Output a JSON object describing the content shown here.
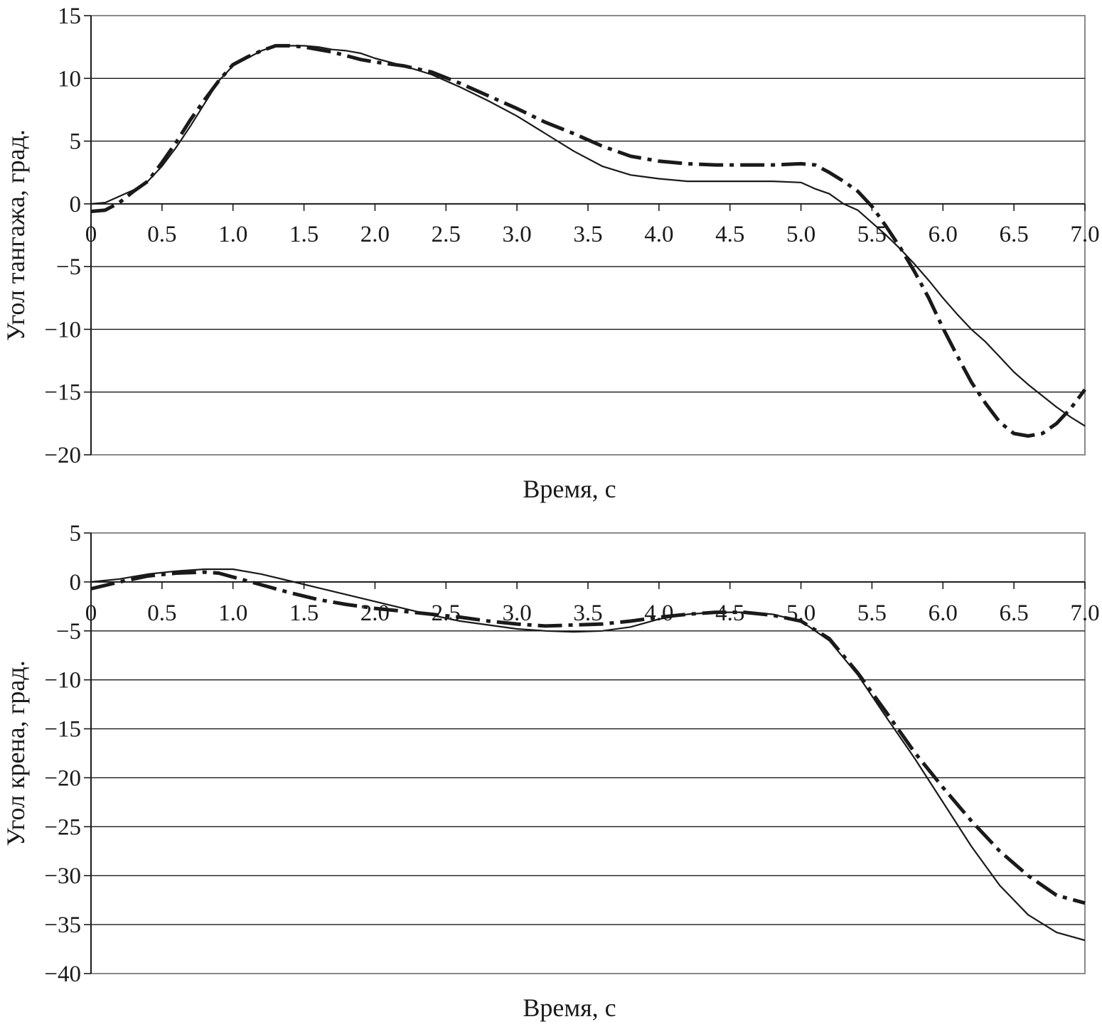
{
  "chart_data": [
    {
      "type": "line",
      "xlabel": "Время, с",
      "ylabel": "Угол тангажа, град.",
      "xlim": [
        0,
        7.0
      ],
      "ylim": [
        -20,
        15
      ],
      "x_ticks": [
        "0",
        "0.5",
        "1.0",
        "1.5",
        "2.0",
        "2.5",
        "3.0",
        "3.5",
        "4.0",
        "4.5",
        "5.0",
        "5.5",
        "6.0",
        "6.5",
        "7.0"
      ],
      "x_tick_values": [
        0,
        0.5,
        1.0,
        1.5,
        2.0,
        2.5,
        3.0,
        3.5,
        4.0,
        4.5,
        5.0,
        5.5,
        6.0,
        6.5,
        7.0
      ],
      "y_ticks": [
        "15",
        "10",
        "5",
        "0",
        "−5",
        "−10",
        "−15",
        "−20"
      ],
      "y_tick_values": [
        15,
        10,
        5,
        0,
        -5,
        -10,
        -15,
        -20
      ],
      "grid": "horizontal",
      "series": [
        {
          "style": "solid",
          "color": "#1a1a1a",
          "x": [
            0,
            0.1,
            0.2,
            0.3,
            0.4,
            0.5,
            0.6,
            0.7,
            0.8,
            0.9,
            1.0,
            1.1,
            1.2,
            1.3,
            1.4,
            1.5,
            1.6,
            1.7,
            1.8,
            1.9,
            2.0,
            2.2,
            2.4,
            2.6,
            2.8,
            3.0,
            3.2,
            3.4,
            3.6,
            3.8,
            4.0,
            4.2,
            4.4,
            4.6,
            4.8,
            5.0,
            5.1,
            5.2,
            5.3,
            5.4,
            5.5,
            5.6,
            5.7,
            5.8,
            5.9,
            6.0,
            6.1,
            6.2,
            6.3,
            6.4,
            6.5,
            6.6,
            6.7,
            6.8,
            6.9,
            7.0
          ],
          "y": [
            0,
            0.1,
            0.6,
            1.1,
            1.8,
            3.0,
            4.5,
            6.2,
            8.0,
            9.8,
            11.0,
            11.6,
            12.2,
            12.6,
            12.6,
            12.6,
            12.5,
            12.3,
            12.2,
            12.0,
            11.6,
            11.0,
            10.3,
            9.3,
            8.2,
            7.0,
            5.6,
            4.2,
            3.0,
            2.3,
            2.0,
            1.8,
            1.8,
            1.8,
            1.8,
            1.7,
            1.2,
            0.8,
            0.0,
            -0.5,
            -1.5,
            -2.5,
            -3.6,
            -4.8,
            -6.1,
            -7.5,
            -8.8,
            -10.0,
            -11.0,
            -12.2,
            -13.4,
            -14.4,
            -15.3,
            -16.2,
            -17.0,
            -17.7
          ]
        },
        {
          "style": "dash-dot",
          "color": "#1a1a1a",
          "x": [
            0,
            0.1,
            0.2,
            0.3,
            0.4,
            0.5,
            0.6,
            0.7,
            0.8,
            0.9,
            1.0,
            1.1,
            1.2,
            1.3,
            1.4,
            1.5,
            1.6,
            1.7,
            1.8,
            1.9,
            2.0,
            2.2,
            2.4,
            2.6,
            2.8,
            3.0,
            3.2,
            3.4,
            3.6,
            3.8,
            4.0,
            4.2,
            4.4,
            4.6,
            4.8,
            5.0,
            5.1,
            5.2,
            5.3,
            5.4,
            5.5,
            5.6,
            5.7,
            5.8,
            5.9,
            6.0,
            6.1,
            6.2,
            6.3,
            6.4,
            6.5,
            6.6,
            6.7,
            6.8,
            6.9,
            7.0
          ],
          "y": [
            -0.6,
            -0.5,
            0.1,
            1.0,
            1.8,
            3.3,
            4.9,
            6.7,
            8.3,
            9.8,
            11.1,
            11.7,
            12.2,
            12.6,
            12.6,
            12.5,
            12.3,
            12.1,
            11.8,
            11.5,
            11.3,
            11.0,
            10.5,
            9.6,
            8.6,
            7.6,
            6.5,
            5.6,
            4.6,
            3.8,
            3.4,
            3.2,
            3.1,
            3.1,
            3.1,
            3.2,
            3.1,
            2.5,
            1.8,
            1.0,
            -0.2,
            -1.8,
            -3.5,
            -5.4,
            -7.5,
            -9.9,
            -12.1,
            -14.2,
            -15.9,
            -17.4,
            -18.3,
            -18.5,
            -18.3,
            -17.5,
            -16.3,
            -14.8
          ]
        }
      ]
    },
    {
      "type": "line",
      "xlabel": "Время, с",
      "ylabel": "Угол крена, град.",
      "xlim": [
        0,
        7.0
      ],
      "ylim": [
        -40,
        5
      ],
      "x_ticks": [
        "0",
        "0.5",
        "1.0",
        "1.5",
        "2.0",
        "2.5",
        "3.0",
        "3.5",
        "4.0",
        "4.5",
        "5.0",
        "5.5",
        "6.0",
        "6.5",
        "7.0"
      ],
      "x_tick_values": [
        0,
        0.5,
        1.0,
        1.5,
        2.0,
        2.5,
        3.0,
        3.5,
        4.0,
        4.5,
        5.0,
        5.5,
        6.0,
        6.5,
        7.0
      ],
      "y_ticks": [
        "5",
        "0",
        "−5",
        "−10",
        "−15",
        "−20",
        "−25",
        "−30",
        "−35",
        "−40"
      ],
      "y_tick_values": [
        5,
        0,
        -5,
        -10,
        -15,
        -20,
        -25,
        -30,
        -35,
        -40
      ],
      "grid": "horizontal",
      "series": [
        {
          "style": "solid",
          "color": "#1a1a1a",
          "x": [
            0,
            0.2,
            0.4,
            0.6,
            0.8,
            1.0,
            1.2,
            1.4,
            1.6,
            1.8,
            2.0,
            2.2,
            2.4,
            2.6,
            2.8,
            3.0,
            3.2,
            3.4,
            3.6,
            3.8,
            4.0,
            4.2,
            4.4,
            4.6,
            4.8,
            5.0,
            5.2,
            5.4,
            5.6,
            5.8,
            6.0,
            6.2,
            6.4,
            6.6,
            6.8,
            7.0
          ],
          "y": [
            0,
            0.3,
            0.8,
            1.1,
            1.3,
            1.3,
            0.8,
            0.1,
            -0.6,
            -1.3,
            -2.0,
            -2.7,
            -3.4,
            -4.0,
            -4.4,
            -4.8,
            -5.0,
            -5.1,
            -5.0,
            -4.6,
            -3.8,
            -3.3,
            -3.1,
            -3.1,
            -3.3,
            -4.0,
            -6.0,
            -9.5,
            -13.8,
            -18.0,
            -22.5,
            -27.0,
            -31.0,
            -34.0,
            -35.8,
            -36.6
          ]
        },
        {
          "style": "dash-dot",
          "color": "#1a1a1a",
          "x": [
            0,
            0.2,
            0.4,
            0.6,
            0.8,
            0.9,
            1.0,
            1.2,
            1.4,
            1.6,
            1.8,
            2.0,
            2.2,
            2.4,
            2.6,
            2.8,
            3.0,
            3.2,
            3.4,
            3.6,
            3.8,
            4.0,
            4.2,
            4.4,
            4.6,
            4.8,
            5.0,
            5.2,
            5.4,
            5.6,
            5.8,
            6.0,
            6.2,
            6.4,
            6.6,
            6.8,
            7.0
          ],
          "y": [
            -0.7,
            0.0,
            0.6,
            0.9,
            1.0,
            0.9,
            0.5,
            -0.3,
            -1.1,
            -1.8,
            -2.3,
            -2.7,
            -3.0,
            -3.3,
            -3.6,
            -4.0,
            -4.3,
            -4.5,
            -4.4,
            -4.3,
            -4.0,
            -3.6,
            -3.3,
            -3.1,
            -3.1,
            -3.4,
            -4.0,
            -5.8,
            -9.3,
            -13.3,
            -17.4,
            -21.0,
            -24.4,
            -27.5,
            -30.0,
            -32.0,
            -32.8
          ]
        }
      ]
    }
  ]
}
